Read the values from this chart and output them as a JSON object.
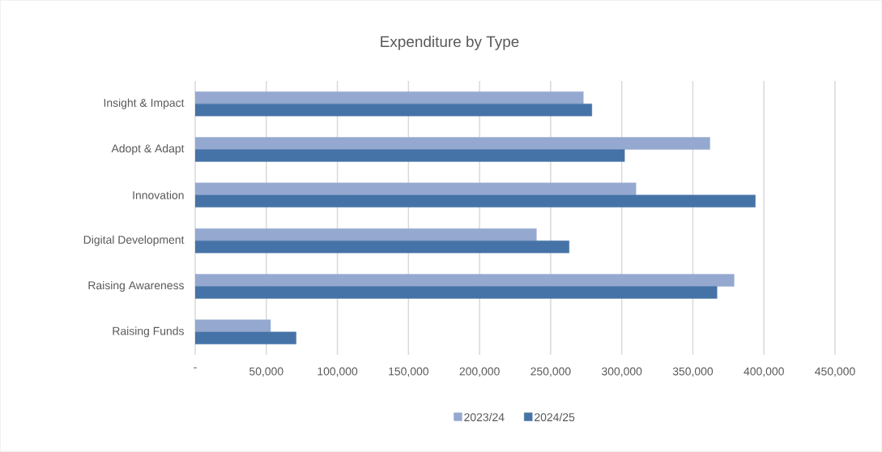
{
  "chart_data": {
    "type": "bar",
    "orientation": "horizontal",
    "title": "Expenditure by Type",
    "categories": [
      "Insight & Impact",
      "Adopt & Adapt",
      "Innovation",
      "Digital Development",
      "Raising Awareness",
      "Raising Funds"
    ],
    "series": [
      {
        "name": "2023/24",
        "color": "#95a9d0",
        "values": [
          273000,
          362000,
          310000,
          240000,
          379000,
          53000
        ]
      },
      {
        "name": "2024/25",
        "color": "#4673a7",
        "values": [
          279000,
          302000,
          394000,
          263000,
          367000,
          71000
        ]
      }
    ],
    "xlim": [
      0,
      450000
    ],
    "xticks": [
      {
        "value": 0,
        "label": "-"
      },
      {
        "value": 50000,
        "label": "50,000"
      },
      {
        "value": 100000,
        "label": "100,000"
      },
      {
        "value": 150000,
        "label": "150,000"
      },
      {
        "value": 200000,
        "label": "200,000"
      },
      {
        "value": 250000,
        "label": "250,000"
      },
      {
        "value": 300000,
        "label": "300,000"
      },
      {
        "value": 350000,
        "label": "350,000"
      },
      {
        "value": 400000,
        "label": "400,000"
      },
      {
        "value": 450000,
        "label": "450,000"
      }
    ],
    "grid": "x",
    "legend": "bottom"
  }
}
